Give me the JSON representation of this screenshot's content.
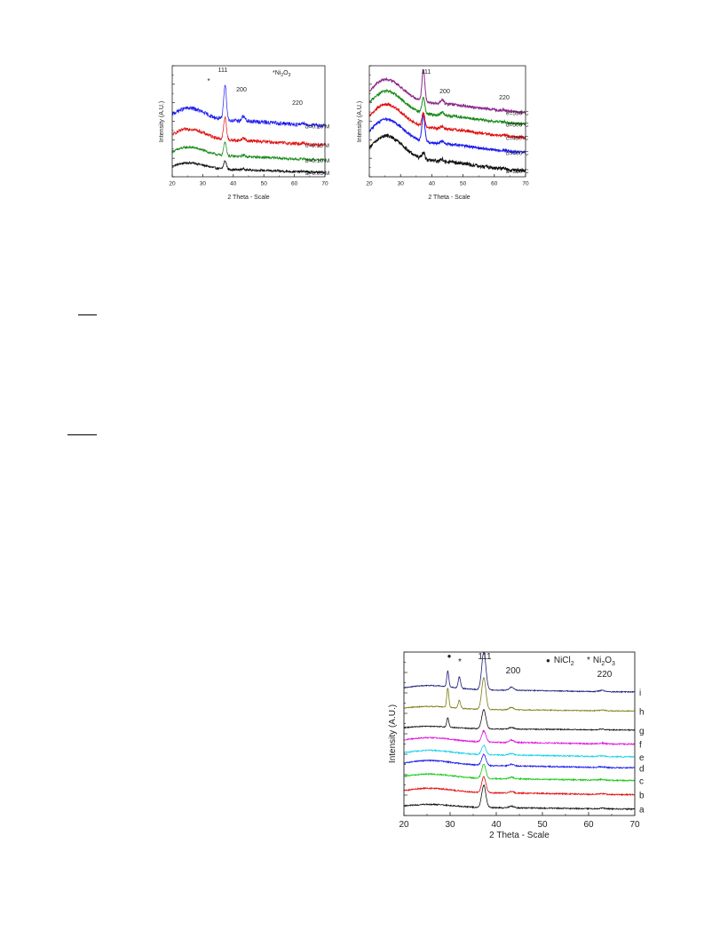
{
  "chart_data": [
    {
      "type": "line",
      "xlabel": "2 Theta - Scale",
      "ylabel": "Intensity (A.U.)",
      "xlim": [
        20,
        70
      ],
      "xticks": [
        20,
        30,
        40,
        50,
        60,
        70
      ],
      "grid": false,
      "legend": "labels at right end of each trace",
      "peaks": [
        {
          "label": "111",
          "x": 37.3
        },
        {
          "label": "200",
          "x": 43.3
        },
        {
          "label": "220",
          "x": 62.9
        }
      ],
      "marker_annotation": {
        "symbol": "*",
        "label": "Ni2O3",
        "x": 32.0
      },
      "series": [
        {
          "name": "a=0.05 M",
          "color": "#111111",
          "offset": 0.0,
          "peak111": 0.6,
          "peak200": 0.08,
          "peak220": 0.05,
          "hump": 0.6,
          "noise": 0.18
        },
        {
          "name": "b=0.10 M",
          "color": "#1a8a1a",
          "offset": 0.9,
          "peak111": 1.0,
          "peak200": 0.12,
          "peak220": 0.06,
          "hump": 0.8,
          "noise": 0.2
        },
        {
          "name": "c=0.15 M",
          "color": "#e01010",
          "offset": 2.0,
          "peak111": 1.6,
          "peak200": 0.2,
          "peak220": 0.1,
          "hump": 1.0,
          "noise": 0.25
        },
        {
          "name": "d=0.20 M",
          "color": "#1a1aee",
          "offset": 3.4,
          "peak111": 2.6,
          "peak200": 0.35,
          "peak220": 0.15,
          "hump": 1.1,
          "noise": 0.3
        }
      ]
    },
    {
      "type": "line",
      "xlabel": "2 Theta - Scale",
      "ylabel": "Intensity (A.U.)",
      "xlim": [
        20,
        70
      ],
      "xticks": [
        20,
        30,
        40,
        50,
        60,
        70
      ],
      "grid": false,
      "legend": "labels at right end of each trace",
      "peaks": [
        {
          "label": "111",
          "x": 37.3
        },
        {
          "label": "200",
          "x": 43.3
        },
        {
          "label": "220",
          "x": 62.9
        }
      ],
      "series": [
        {
          "name": "a=350°C",
          "color": "#111111",
          "offset": 0.0,
          "peak111": 0.4,
          "peak200": 0.15,
          "peak220": 0.05,
          "hump": 1.8,
          "noise": 0.2
        },
        {
          "name": "b=400°C",
          "color": "#1a1aee",
          "offset": 1.1,
          "peak111": 1.6,
          "peak200": 0.15,
          "peak220": 0.05,
          "hump": 1.7,
          "noise": 0.15
        },
        {
          "name": "c=450°C",
          "color": "#e01010",
          "offset": 2.0,
          "peak111": 0.8,
          "peak200": 0.15,
          "peak220": 0.05,
          "hump": 1.7,
          "noise": 0.15
        },
        {
          "name": "d=500°C",
          "color": "#1a8a1a",
          "offset": 2.8,
          "peak111": 0.9,
          "peak200": 0.2,
          "peak220": 0.05,
          "hump": 1.7,
          "noise": 0.15
        },
        {
          "name": "e=550°C",
          "color": "#8a2a8a",
          "offset": 3.5,
          "peak111": 1.9,
          "peak200": 0.25,
          "peak220": 0.05,
          "hump": 1.7,
          "noise": 0.15
        }
      ]
    },
    {
      "type": "line",
      "xlabel": "2 Theta - Scale",
      "ylabel": "Intensity (A.U.)",
      "xlim": [
        20,
        70
      ],
      "xticks": [
        20,
        30,
        40,
        50,
        60,
        70
      ],
      "grid": false,
      "legend": "labels at right end of each trace",
      "peaks": [
        {
          "label": "111",
          "x": 37.3
        },
        {
          "label": "200",
          "x": 43.3
        },
        {
          "label": "220",
          "x": 62.9
        }
      ],
      "marker_annotations": [
        {
          "symbol": "●",
          "label": "NiCl2",
          "x": 29.5
        },
        {
          "symbol": "*",
          "label": "Ni2O3",
          "x": 32.0
        }
      ],
      "series": [
        {
          "name": "a",
          "color": "#111111",
          "offset": 0.0,
          "peak111": 1.4,
          "peak200": 0.1,
          "peak220": 0.05,
          "peakNiCl2": 0.0,
          "peakNi2O3": 0.0,
          "hump": 0.25,
          "noise": 0.08
        },
        {
          "name": "b",
          "color": "#e01010",
          "offset": 0.9,
          "peak111": 1.0,
          "peak200": 0.1,
          "peak220": 0.05,
          "peakNiCl2": 0.0,
          "peakNi2O3": 0.0,
          "hump": 0.35,
          "noise": 0.08
        },
        {
          "name": "c",
          "color": "#10c810",
          "offset": 1.8,
          "peak111": 0.9,
          "peak200": 0.1,
          "peak220": 0.05,
          "peakNiCl2": 0.0,
          "peakNi2O3": 0.0,
          "hump": 0.35,
          "noise": 0.08
        },
        {
          "name": "d",
          "color": "#1a1aee",
          "offset": 2.6,
          "peak111": 0.7,
          "peak200": 0.1,
          "peak220": 0.05,
          "peakNiCl2": 0.0,
          "peakNi2O3": 0.0,
          "hump": 0.4,
          "noise": 0.08
        },
        {
          "name": "e",
          "color": "#10d0e8",
          "offset": 3.3,
          "peak111": 0.6,
          "peak200": 0.1,
          "peak220": 0.05,
          "peakNiCl2": 0.0,
          "peakNi2O3": 0.0,
          "hump": 0.35,
          "noise": 0.08
        },
        {
          "name": "f",
          "color": "#e010e0",
          "offset": 4.1,
          "peak111": 0.7,
          "peak200": 0.15,
          "peak220": 0.05,
          "peakNiCl2": 0.0,
          "peakNi2O3": 0.0,
          "hump": 0.35,
          "noise": 0.08
        },
        {
          "name": "g",
          "color": "#111111",
          "offset": 5.0,
          "peak111": 1.2,
          "peak200": 0.1,
          "peak220": 0.05,
          "peakNiCl2": 0.6,
          "peakNi2O3": 0.0,
          "hump": 0.2,
          "noise": 0.06
        },
        {
          "name": "h",
          "color": "#7a7a10",
          "offset": 6.2,
          "peak111": 2.0,
          "peak200": 0.15,
          "peak220": 0.05,
          "peakNiCl2": 1.2,
          "peakNi2O3": 0.5,
          "hump": 0.25,
          "noise": 0.06
        },
        {
          "name": "i",
          "color": "#1a1a7a",
          "offset": 7.4,
          "peak111": 2.4,
          "peak200": 0.2,
          "peak220": 0.08,
          "peakNiCl2": 1.0,
          "peakNi2O3": 0.7,
          "hump": 0.35,
          "noise": 0.06
        }
      ]
    }
  ],
  "figure1": {
    "ylabel": "Intensity (A.U.)",
    "xlabel": "2 Theta - Scale",
    "legend_star": "*",
    "legend_text": "Ni",
    "legend_sub1": "2",
    "legend_mid": "O",
    "legend_sub2": "3",
    "star_annotation": "*",
    "peak111": "111",
    "peak200": "200",
    "peak220": "220",
    "labels": [
      "a=0.05 M",
      "b=0.10 M",
      "c=0.15 M",
      "d=0.20 M"
    ],
    "ticks": [
      "20",
      "30",
      "40",
      "50",
      "60",
      "70"
    ]
  },
  "figure2": {
    "ylabel": "Intensity (A.U.)",
    "xlabel": "2 Theta - Scale",
    "peak111": "111",
    "peak200": "200",
    "peak220": "220",
    "labels": [
      "a=350°C",
      "b=400°C",
      "c=450°C",
      "d=500°C",
      "e=550°C"
    ],
    "ticks": [
      "20",
      "30",
      "40",
      "50",
      "60",
      "70"
    ]
  },
  "figure3": {
    "ylabel": "Intensity (A.U.)",
    "xlabel": "2 Theta - Scale",
    "peak111": "111",
    "peak200": "200",
    "peak220": "220",
    "dot_symbol": "●",
    "legend_nicl": "NiCl",
    "legend_nicl_sub": "2",
    "legend_star": "*",
    "legend_ni": "Ni",
    "legend_ni_sub1": "2",
    "legend_o": "O",
    "legend_o_sub": "3",
    "star_annotation": "*",
    "labels": [
      "a",
      "b",
      "c",
      "d",
      "e",
      "f",
      "g",
      "h",
      "i"
    ],
    "ticks": [
      "20",
      "30",
      "40",
      "50",
      "60",
      "70"
    ]
  }
}
